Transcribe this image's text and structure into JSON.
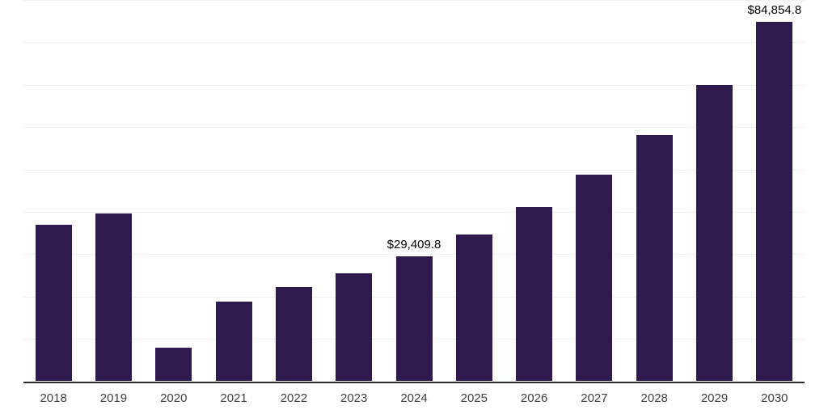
{
  "chart_data": {
    "type": "bar",
    "title": "",
    "xlabel": "",
    "ylabel": "",
    "categories": [
      "2018",
      "2019",
      "2020",
      "2021",
      "2022",
      "2023",
      "2024",
      "2025",
      "2026",
      "2027",
      "2028",
      "2029",
      "2030"
    ],
    "values": [
      36850,
      39650,
      7850,
      18850,
      22150,
      25450,
      29409.8,
      34550,
      41050,
      48800,
      58100,
      70000,
      84854.8
    ],
    "labeled_points": [
      {
        "category": "2024",
        "label": "$29,409.8"
      },
      {
        "category": "2030",
        "label": "$84,854.8"
      }
    ],
    "ylim": [
      0,
      90000
    ],
    "gridline_step": 10000,
    "grid": "horizontal-gridlines-no-y-tick-labels",
    "legend": "none",
    "colors": {
      "bar": "#2F1A4D",
      "axis_line": "#2B2B2B",
      "gridline": "#F1F1F1",
      "tick_label": "#3F3F3F",
      "data_label": "#000000",
      "background": "#FFFFFF"
    }
  }
}
